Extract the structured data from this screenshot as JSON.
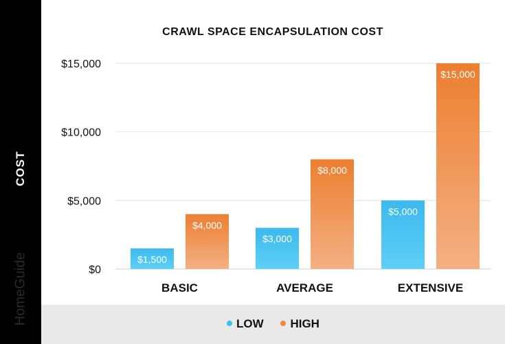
{
  "chart_data": {
    "type": "bar",
    "title": "CRAWL SPACE ENCAPSULATION COST",
    "ylabel": "COST",
    "xlabel": "",
    "categories": [
      "BASIC",
      "AVERAGE",
      "EXTENSIVE"
    ],
    "series": [
      {
        "name": "LOW",
        "values": [
          1500,
          3000,
          5000
        ],
        "labels": [
          "$1,500",
          "$3,000",
          "$5,000"
        ],
        "color": "#3bbfef"
      },
      {
        "name": "HIGH",
        "values": [
          4000,
          8000,
          15000
        ],
        "labels": [
          "$4,000",
          "$8,000",
          "$15,000"
        ],
        "color": "#ee8a3e"
      }
    ],
    "yticks": [
      {
        "value": 0,
        "label": "$0"
      },
      {
        "value": 5000,
        "label": "$5,000"
      },
      {
        "value": 10000,
        "label": "$10,000"
      },
      {
        "value": 15000,
        "label": "$15,000"
      }
    ],
    "ylim": [
      0,
      15000
    ],
    "grid": true,
    "legend_placement": "bottom"
  },
  "brand": "HomeGuide",
  "colors": {
    "low": "#3bbfef",
    "high": "#ee8a3e",
    "sidebar": "#000000",
    "footer": "#e9e9e9"
  }
}
